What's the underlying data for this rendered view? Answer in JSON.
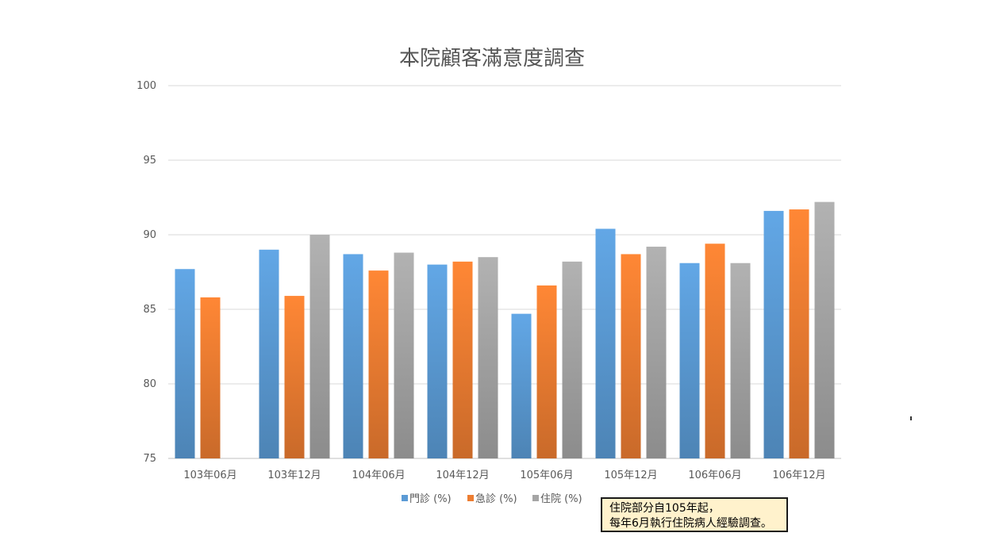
{
  "chart_data": {
    "type": "bar",
    "title": "本院顧客滿意度調查",
    "xlabel": "",
    "ylabel": "",
    "ylim": [
      75,
      100
    ],
    "yticks": [
      75,
      80,
      85,
      90,
      95,
      100
    ],
    "grid": true,
    "legend": "bottom",
    "categories": [
      "103年06月",
      "103年12月",
      "104年06月",
      "104年12月",
      "105年06月",
      "105年12月",
      "106年06月",
      "106年12月"
    ],
    "series": [
      {
        "name": "門診 (%)",
        "color": "#5b9bd5",
        "values": [
          87.7,
          89.0,
          88.7,
          88.0,
          84.7,
          90.4,
          88.1,
          91.6
        ]
      },
      {
        "name": "急診 (%)",
        "color": "#ed7d31",
        "values": [
          85.8,
          85.9,
          87.6,
          88.2,
          86.6,
          88.7,
          89.4,
          91.7
        ]
      },
      {
        "name": "住院 (%)",
        "color": "#a5a5a5",
        "values": [
          null,
          90.0,
          88.8,
          88.5,
          88.2,
          89.2,
          88.1,
          92.2
        ]
      }
    ]
  },
  "note": {
    "line1": "住院部分自105年起，",
    "line2": "每年6月執行住院病人經驗調查。"
  }
}
